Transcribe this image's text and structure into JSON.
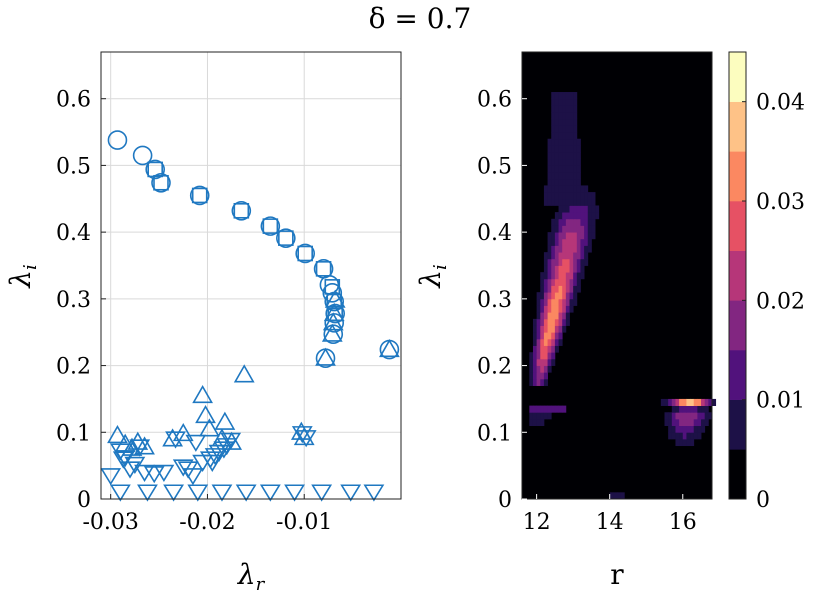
{
  "title": "δ = 0.7",
  "colors": {
    "marker": "#1f78c1",
    "grid": "#d9d9d9",
    "axis": "#222222",
    "background": "#000004"
  },
  "chart_data": [
    {
      "type": "scatter",
      "title": "",
      "xlabel": "λ_r",
      "ylabel": "λ_i",
      "xlim": [
        -0.031,
        0.0
      ],
      "ylim": [
        0,
        0.67
      ],
      "xticks": [
        -0.03,
        -0.02,
        -0.01
      ],
      "xtick_labels": [
        "-0.03",
        "-0.02",
        "-0.01"
      ],
      "yticks": [
        0,
        0.1,
        0.2,
        0.3,
        0.4,
        0.5,
        0.6
      ],
      "ytick_labels": [
        "0",
        "0.1",
        "0.2",
        "0.3",
        "0.4",
        "0.5",
        "0.6"
      ],
      "grid": true,
      "series": [
        {
          "name": "circle",
          "marker": "o",
          "x": [
            -0.0293,
            -0.0267,
            -0.0254,
            -0.0248,
            -0.0208,
            -0.0165,
            -0.0135,
            -0.0119,
            -0.0099,
            -0.008,
            -0.0074,
            -0.0071,
            -0.0069,
            -0.0068,
            -0.0069,
            -0.007,
            -0.0078,
            -0.0012
          ],
          "y": [
            0.538,
            0.515,
            0.494,
            0.474,
            0.455,
            0.432,
            0.409,
            0.391,
            0.368,
            0.345,
            0.321,
            0.309,
            0.296,
            0.278,
            0.264,
            0.247,
            0.211,
            0.224
          ]
        },
        {
          "name": "square",
          "marker": "s",
          "x": [
            -0.0254,
            -0.0248,
            -0.0208,
            -0.0165,
            -0.0135,
            -0.0119,
            -0.0099,
            -0.008,
            -0.0071,
            -0.0069,
            -0.0068
          ],
          "y": [
            0.494,
            0.474,
            0.455,
            0.432,
            0.409,
            0.391,
            0.368,
            0.345,
            0.318,
            0.296,
            0.278
          ]
        },
        {
          "name": "triangle-up",
          "marker": "^",
          "x": [
            -0.0293,
            -0.0285,
            -0.0278,
            -0.0272,
            -0.0265,
            -0.0236,
            -0.0225,
            -0.0205,
            -0.0202,
            -0.0198,
            -0.0185,
            -0.0182,
            -0.0175,
            -0.0162,
            -0.0103,
            -0.01,
            -0.0078,
            -0.0071,
            -0.007,
            -0.0069,
            -0.0068,
            -0.0012
          ],
          "y": [
            0.095,
            0.082,
            0.076,
            0.085,
            0.078,
            0.09,
            0.098,
            0.155,
            0.125,
            0.105,
            0.09,
            0.115,
            0.085,
            0.186,
            0.1,
            0.092,
            0.211,
            0.247,
            0.264,
            0.278,
            0.298,
            0.224
          ]
        },
        {
          "name": "triangle-down",
          "marker": "v",
          "x": [
            -0.03,
            -0.029,
            -0.0287,
            -0.028,
            -0.0275,
            -0.027,
            -0.0265,
            -0.0245,
            -0.0233,
            -0.022,
            -0.0212,
            -0.0205,
            -0.0197,
            -0.0192,
            -0.0188,
            -0.0183,
            -0.018,
            -0.0176,
            -0.0102,
            -0.0098,
            -0.0285,
            -0.0255,
            -0.0225,
            -0.0215,
            -0.0195,
            -0.029,
            -0.0262,
            -0.0235,
            -0.021,
            -0.0185,
            -0.016,
            -0.0135,
            -0.011,
            -0.0082,
            -0.0052,
            -0.0028
          ],
          "y": [
            0.035,
            0.072,
            0.06,
            0.045,
            0.052,
            0.078,
            0.04,
            0.04,
            0.09,
            0.045,
            0.085,
            0.055,
            0.06,
            0.065,
            0.07,
            0.075,
            0.08,
            0.088,
            0.098,
            0.092,
            0.062,
            0.038,
            0.048,
            0.035,
            0.055,
            0,
            0,
            0,
            0,
            0,
            0,
            0,
            0,
            0,
            0,
            0
          ]
        }
      ]
    },
    {
      "type": "heatmap",
      "title": "",
      "xlabel": "r",
      "ylabel": "λ_i",
      "xlim": [
        11.6,
        16.8
      ],
      "ylim": [
        0,
        0.67
      ],
      "xticks": [
        12,
        14,
        16
      ],
      "xtick_labels": [
        "12",
        "14",
        "16"
      ],
      "yticks": [
        0,
        0.1,
        0.2,
        0.3,
        0.4,
        0.5,
        0.6
      ],
      "ytick_labels": [
        "0",
        "0.1",
        "0.2",
        "0.3",
        "0.4",
        "0.5",
        "0.6"
      ],
      "colormap": "magma",
      "colorbar": {
        "range": [
          0,
          0.045
        ],
        "ticks": [
          0,
          0.01,
          0.02,
          0.03,
          0.04
        ],
        "tick_labels": [
          "0",
          "0.01",
          "0.02",
          "0.03",
          "0.04"
        ],
        "levels": 9
      },
      "features": [
        {
          "name": "main-tongue",
          "r_range": [
            11.8,
            13.8
          ],
          "lambda_range": [
            0.18,
            0.45
          ],
          "peak": 0.032
        },
        {
          "name": "upper-plume",
          "r_range": [
            12.2,
            13.3
          ],
          "lambda_range": [
            0.45,
            0.6
          ],
          "peak": 0.008
        },
        {
          "name": "left-streaks",
          "r_range": [
            11.8,
            13.0
          ],
          "lambda_range": [
            0.09,
            0.15
          ],
          "peak": 0.012
        },
        {
          "name": "right-streaks",
          "r_range": [
            15.0,
            16.7
          ],
          "lambda_range": [
            0.04,
            0.15
          ],
          "peak": 0.037
        }
      ]
    }
  ]
}
